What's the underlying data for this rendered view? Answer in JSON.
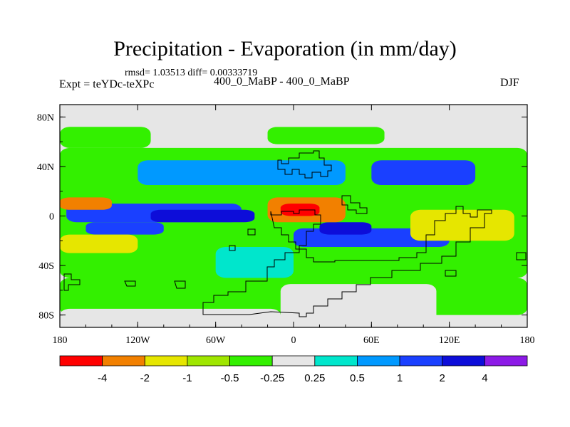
{
  "header": {
    "title": "Precipitation - Evaporation (in mm/day)",
    "stats": "rmsd= 1.03513 diff= 0.00333719",
    "experiment": "Expt = teYDc-teXPc",
    "period": "400_0_MaBP - 400_0_MaBP",
    "season": "DJF"
  },
  "chart_data": {
    "type": "heatmap",
    "title": "Precipitation - Evaporation (in mm/day)",
    "xlabel": "",
    "ylabel": "",
    "xlim": [
      -180,
      180
    ],
    "ylim": [
      -90,
      90
    ],
    "x_ticks": [
      {
        "value": -180,
        "label": "180"
      },
      {
        "value": -120,
        "label": "120W"
      },
      {
        "value": -60,
        "label": "60W"
      },
      {
        "value": 0,
        "label": "0"
      },
      {
        "value": 60,
        "label": "60E"
      },
      {
        "value": 120,
        "label": "120E"
      },
      {
        "value": 180,
        "label": "180"
      }
    ],
    "y_ticks": [
      {
        "value": 80,
        "label": "80N"
      },
      {
        "value": 40,
        "label": "40N"
      },
      {
        "value": 0,
        "label": "0"
      },
      {
        "value": -40,
        "label": "40S"
      },
      {
        "value": -80,
        "label": "80S"
      }
    ],
    "levels": [
      "-4",
      "-2",
      "-1",
      "-0.5",
      "-0.25",
      "0.25",
      "0.5",
      "1",
      "2",
      "4"
    ],
    "colors": [
      "#ff0000",
      "#f28000",
      "#e6e600",
      "#9fe600",
      "#33f000",
      "#e6e6e6",
      "#00e6cc",
      "#0099ff",
      "#1a40ff",
      "#0d0dd9",
      "#8c1ae6"
    ],
    "land_outline_note": "continent outlines drawn as black step contours",
    "regions": [
      {
        "lon": [
          -180,
          180
        ],
        "lat": [
          -50,
          55
        ],
        "bin": 4
      },
      {
        "lon": [
          -180,
          -110
        ],
        "lat": [
          55,
          72
        ],
        "bin": 4
      },
      {
        "lon": [
          -20,
          70
        ],
        "lat": [
          58,
          72
        ],
        "bin": 4
      },
      {
        "lon": [
          -180,
          180
        ],
        "lat": [
          -80,
          -50
        ],
        "bin": 4
      },
      {
        "lon": [
          -120,
          40
        ],
        "lat": [
          25,
          45
        ],
        "bin": 7
      },
      {
        "lon": [
          60,
          140
        ],
        "lat": [
          25,
          45
        ],
        "bin": 8
      },
      {
        "lon": [
          -175,
          -40
        ],
        "lat": [
          -5,
          10
        ],
        "bin": 8
      },
      {
        "lon": [
          -110,
          -30
        ],
        "lat": [
          -5,
          5
        ],
        "bin": 9
      },
      {
        "lon": [
          -160,
          -100
        ],
        "lat": [
          -15,
          -5
        ],
        "bin": 8
      },
      {
        "lon": [
          0,
          120
        ],
        "lat": [
          -25,
          -10
        ],
        "bin": 8
      },
      {
        "lon": [
          20,
          60
        ],
        "lat": [
          -15,
          -5
        ],
        "bin": 9
      },
      {
        "lon": [
          -20,
          40
        ],
        "lat": [
          -5,
          15
        ],
        "bin": 1
      },
      {
        "lon": [
          -10,
          20
        ],
        "lat": [
          0,
          10
        ],
        "bin": 0
      },
      {
        "lon": [
          -180,
          -140
        ],
        "lat": [
          5,
          15
        ],
        "bin": 1
      },
      {
        "lon": [
          -180,
          -120
        ],
        "lat": [
          -30,
          -15
        ],
        "bin": 2
      },
      {
        "lon": [
          -60,
          0
        ],
        "lat": [
          -50,
          -25
        ],
        "bin": 6
      },
      {
        "lon": [
          90,
          170
        ],
        "lat": [
          -20,
          5
        ],
        "bin": 2
      },
      {
        "lon": [
          -10,
          110
        ],
        "lat": [
          -90,
          -55
        ],
        "bin": 5
      },
      {
        "lon": [
          -180,
          -10
        ],
        "lat": [
          -90,
          -75
        ],
        "bin": 5
      },
      {
        "lon": [
          -60,
          180
        ],
        "lat": [
          72,
          90
        ],
        "bin": 5
      },
      {
        "lon": [
          -180,
          -60
        ],
        "lat": [
          80,
          90
        ],
        "bin": 5
      }
    ]
  }
}
